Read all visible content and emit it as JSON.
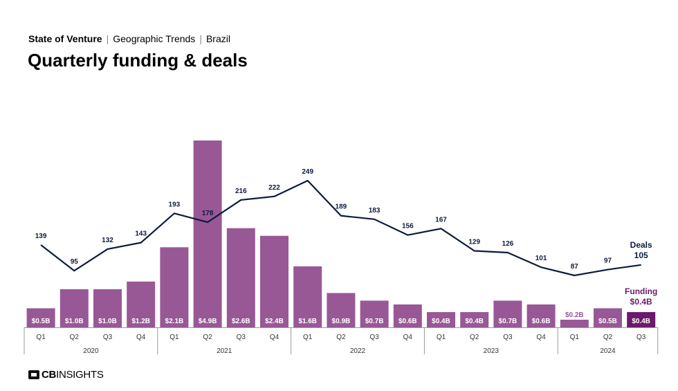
{
  "header": {
    "crumb_1": "State of Venture",
    "crumb_2": "Geographic Trends",
    "crumb_3": "Brazil",
    "separator": "|",
    "title": "Quarterly funding & deals"
  },
  "logo": {
    "bold": "CB",
    "rest": "INSIGHTS"
  },
  "colors": {
    "bar": "#985896",
    "bar_highlight": "#6a1a69",
    "line": "#0c1a3e",
    "funding_label": "#6a1a69",
    "axis": "#999999"
  },
  "chart_data": {
    "type": "bar",
    "quarters": [
      "Q1",
      "Q2",
      "Q3",
      "Q4",
      "Q1",
      "Q2",
      "Q3",
      "Q4",
      "Q1",
      "Q2",
      "Q3",
      "Q4",
      "Q1",
      "Q2",
      "Q3",
      "Q4",
      "Q1",
      "Q2",
      "Q3"
    ],
    "years": [
      {
        "label": "2020",
        "quarters": 4
      },
      {
        "label": "2021",
        "quarters": 4
      },
      {
        "label": "2022",
        "quarters": 4
      },
      {
        "label": "2023",
        "quarters": 4
      },
      {
        "label": "2024",
        "quarters": 3
      }
    ],
    "series": [
      {
        "name": "Funding",
        "kind": "bar",
        "values": [
          0.5,
          1.0,
          1.0,
          1.2,
          2.1,
          4.9,
          2.6,
          2.4,
          1.6,
          0.9,
          0.7,
          0.6,
          0.4,
          0.4,
          0.7,
          0.6,
          0.2,
          0.5,
          0.4
        ],
        "labels": [
          "$0.5B",
          "$1.0B",
          "$1.0B",
          "$1.2B",
          "$2.1B",
          "$4.9B",
          "$2.6B",
          "$2.4B",
          "$1.6B",
          "$0.9B",
          "$0.7B",
          "$0.6B",
          "$0.4B",
          "$0.4B",
          "$0.7B",
          "$0.6B",
          "$0.2B",
          "$0.5B",
          "$0.4B"
        ]
      },
      {
        "name": "Deals",
        "kind": "line",
        "values": [
          139,
          95,
          132,
          143,
          193,
          178,
          216,
          222,
          249,
          189,
          183,
          156,
          167,
          129,
          126,
          101,
          87,
          97,
          105
        ]
      }
    ],
    "end_labels": {
      "deals_name": "Deals",
      "deals_value": "105",
      "funding_name": "Funding",
      "funding_value": "$0.4B"
    },
    "legend": "none",
    "grid": false
  }
}
